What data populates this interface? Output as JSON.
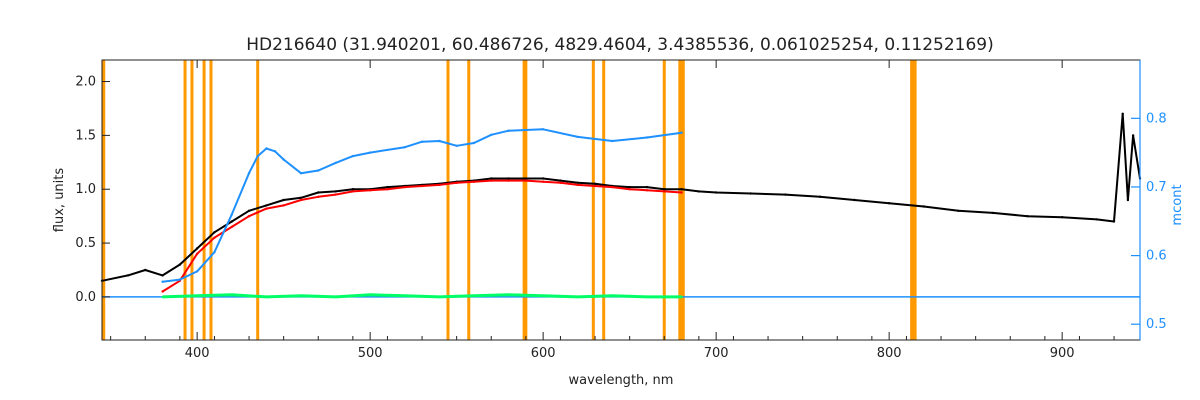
{
  "chart_data": {
    "type": "line",
    "title": "HD216640    (31.940201, 60.486726, 4829.4604, 3.4385536, 0.061025254, 0.11252169)",
    "xlabel": "wavelength, nm",
    "ylabel": "flux, units",
    "y2label": "mcont",
    "xlim": [
      345,
      945
    ],
    "ylim": [
      -0.4,
      2.2
    ],
    "y2lim": [
      0.477,
      0.885
    ],
    "xticks": [
      400,
      500,
      600,
      700,
      800,
      900
    ],
    "yticks": [
      0.0,
      0.5,
      1.0,
      1.5,
      2.0
    ],
    "ytick_labels": [
      "0.0",
      "0.5",
      "1.0",
      "1.5",
      "2.0"
    ],
    "y2ticks": [
      0.5,
      0.6,
      0.7,
      0.8
    ],
    "y2tick_labels": [
      "0.5",
      "0.6",
      "0.7",
      "0.8"
    ],
    "grid": false,
    "colors": {
      "observed": "#000000",
      "model": "#ff0000",
      "continuum": "#1e90ff",
      "residual": "#00ff66",
      "mask": "#ff9900",
      "zero_line": "#1e90ff"
    },
    "mask_lines": [
      346,
      393,
      397,
      404,
      408,
      435,
      545,
      557,
      589,
      590,
      629,
      635,
      670,
      679,
      680,
      681,
      813,
      814,
      815
    ],
    "series": [
      {
        "role": "observed",
        "color": "#000000",
        "x": [
          345,
          360,
          370,
          380,
          390,
          400,
          410,
          420,
          430,
          440,
          450,
          460,
          470,
          480,
          490,
          500,
          510,
          520,
          530,
          540,
          550,
          560,
          570,
          580,
          590,
          600,
          610,
          620,
          630,
          640,
          650,
          660,
          670,
          680,
          690,
          700,
          720,
          740,
          760,
          780,
          800,
          820,
          840,
          860,
          880,
          900,
          920,
          930,
          935,
          938,
          941,
          945
        ],
        "y": [
          0.15,
          0.2,
          0.25,
          0.2,
          0.3,
          0.45,
          0.6,
          0.7,
          0.8,
          0.85,
          0.9,
          0.92,
          0.97,
          0.98,
          1.0,
          1.0,
          1.02,
          1.03,
          1.04,
          1.05,
          1.07,
          1.08,
          1.1,
          1.1,
          1.1,
          1.1,
          1.08,
          1.06,
          1.05,
          1.03,
          1.02,
          1.02,
          1.0,
          1.0,
          0.98,
          0.97,
          0.96,
          0.95,
          0.93,
          0.9,
          0.87,
          0.84,
          0.8,
          0.78,
          0.75,
          0.74,
          0.72,
          0.7,
          1.7,
          0.9,
          1.5,
          1.1
        ]
      },
      {
        "role": "model",
        "color": "#ff0000",
        "x": [
          380,
          390,
          400,
          410,
          420,
          430,
          440,
          450,
          460,
          470,
          480,
          490,
          500,
          510,
          520,
          530,
          540,
          550,
          560,
          570,
          580,
          590,
          600,
          610,
          620,
          630,
          640,
          650,
          660,
          670,
          680
        ],
        "y": [
          0.05,
          0.15,
          0.4,
          0.55,
          0.65,
          0.75,
          0.82,
          0.85,
          0.9,
          0.93,
          0.95,
          0.98,
          0.99,
          1.0,
          1.02,
          1.03,
          1.04,
          1.06,
          1.07,
          1.08,
          1.08,
          1.08,
          1.07,
          1.06,
          1.04,
          1.03,
          1.02,
          1.0,
          0.99,
          0.98,
          0.97
        ]
      },
      {
        "role": "continuum",
        "color": "#1e90ff",
        "x": [
          380,
          390,
          400,
          410,
          420,
          430,
          435,
          440,
          445,
          450,
          460,
          470,
          480,
          490,
          500,
          520,
          530,
          540,
          550,
          560,
          570,
          580,
          600,
          620,
          640,
          660,
          680
        ],
        "y": [
          0.562,
          0.565,
          0.577,
          0.605,
          0.66,
          0.72,
          0.745,
          0.756,
          0.752,
          0.74,
          0.72,
          0.724,
          0.735,
          0.745,
          0.75,
          0.758,
          0.766,
          0.767,
          0.76,
          0.764,
          0.776,
          0.782,
          0.784,
          0.773,
          0.767,
          0.772,
          0.779
        ]
      },
      {
        "role": "residual",
        "color": "#00ff66",
        "x": [
          380,
          400,
          420,
          440,
          460,
          480,
          500,
          520,
          540,
          560,
          580,
          600,
          620,
          640,
          660,
          680
        ],
        "y": [
          0.0,
          0.01,
          0.02,
          0.0,
          0.01,
          0.0,
          0.02,
          0.01,
          0.0,
          0.01,
          0.02,
          0.01,
          0.0,
          0.01,
          0.0,
          0.0
        ]
      }
    ]
  }
}
